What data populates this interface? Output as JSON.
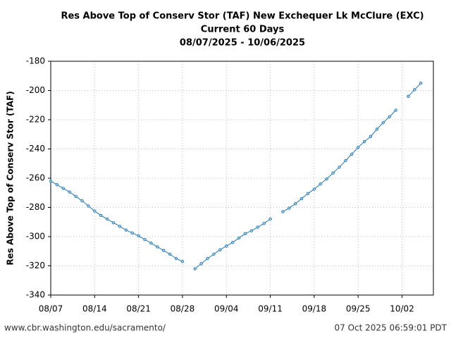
{
  "chart_data": {
    "type": "line",
    "title": "Res Above Top of Conserv Stor (TAF) New Exchequer Lk McClure (EXC)",
    "subtitle": "Current 60 Days",
    "date_range": "08/07/2025 - 10/06/2025",
    "y_label": "Res Above Top of Conserv Stor (TAF)",
    "x": [
      "08/07",
      "08/08",
      "08/09",
      "08/10",
      "08/11",
      "08/12",
      "08/13",
      "08/14",
      "08/15",
      "08/16",
      "08/17",
      "08/18",
      "08/19",
      "08/20",
      "08/21",
      "08/22",
      "08/23",
      "08/24",
      "08/25",
      "08/26",
      "08/27",
      "08/28",
      "08/29",
      "08/30",
      "08/31",
      "09/01",
      "09/02",
      "09/03",
      "09/04",
      "09/05",
      "09/06",
      "09/07",
      "09/08",
      "09/09",
      "09/10",
      "09/11",
      "09/12",
      "09/13",
      "09/14",
      "09/15",
      "09/16",
      "09/17",
      "09/18",
      "09/19",
      "09/20",
      "09/21",
      "09/22",
      "09/23",
      "09/24",
      "09/25",
      "09/26",
      "09/27",
      "09/28",
      "09/29",
      "09/30",
      "10/01",
      "10/02",
      "10/03",
      "10/04",
      "10/05"
    ],
    "series": [
      {
        "name": "Res Above Top of Conserv Stor (TAF)",
        "color": "#1f77b4",
        "values": [
          -262,
          -264.5,
          -267,
          -269.5,
          -272.5,
          -275.5,
          -279,
          -282.5,
          -285.5,
          -288,
          -290.5,
          -293,
          -295.5,
          -297.5,
          -299.5,
          -302,
          -304.5,
          -307,
          -309.5,
          -312,
          -315,
          -317,
          null,
          -322,
          -318.5,
          -315,
          -312,
          -309,
          -306.5,
          -304,
          -301,
          -298,
          -296,
          -293.5,
          -291,
          -288,
          null,
          -283,
          -280.5,
          -277.5,
          -274,
          -270.5,
          -267.5,
          -264,
          -260.5,
          -256.5,
          -252.5,
          -248,
          -243.5,
          -239,
          -235,
          -231.5,
          -226.5,
          -222,
          -218,
          -213.5,
          null,
          -204,
          -199.5,
          -195
        ]
      }
    ],
    "xlim": [
      "08/07",
      "10/07"
    ],
    "xticks": [
      "08/07",
      "08/14",
      "08/21",
      "08/28",
      "09/04",
      "09/11",
      "09/18",
      "09/25",
      "10/02"
    ],
    "ylim": [
      -340,
      -180
    ],
    "yticks": [
      -340,
      -320,
      -300,
      -280,
      -260,
      -240,
      -220,
      -200,
      -180
    ],
    "grid": true,
    "source": "www.cbr.washington.edu/sacramento/",
    "timestamp": "07 Oct 2025 06:59:01 PDT"
  }
}
